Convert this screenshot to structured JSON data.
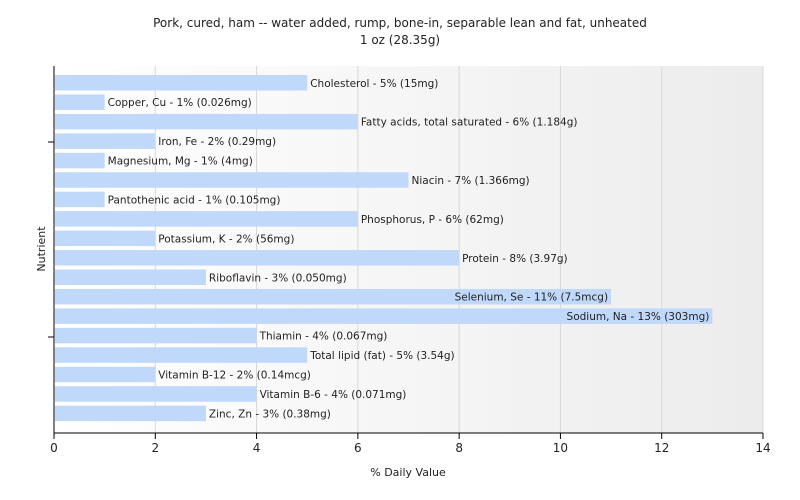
{
  "chart_data": {
    "type": "bar",
    "orientation": "horizontal",
    "title": "Pork, cured, ham -- water added, rump, bone-in, separable lean and fat, unheated",
    "subtitle": "1 oz (28.35g)",
    "xlabel": "% Daily Value",
    "ylabel": "Nutrient",
    "xlim": [
      0,
      14
    ],
    "xticks": [
      0,
      2,
      4,
      6,
      8,
      10,
      12,
      14
    ],
    "grid": true,
    "bar_color": "#c0d8fa",
    "categories": [
      "Cholesterol",
      "Copper, Cu",
      "Fatty acids, total saturated",
      "Iron, Fe",
      "Magnesium, Mg",
      "Niacin",
      "Pantothenic acid",
      "Phosphorus, P",
      "Potassium, K",
      "Protein",
      "Riboflavin",
      "Selenium, Se",
      "Sodium, Na",
      "Thiamin",
      "Total lipid (fat)",
      "Vitamin B-12",
      "Vitamin B-6",
      "Zinc, Zn"
    ],
    "values": [
      5,
      1,
      6,
      2,
      1,
      7,
      1,
      6,
      2,
      8,
      3,
      11,
      13,
      4,
      5,
      2,
      4,
      3
    ],
    "labels": [
      "Cholesterol - 5% (15mg)",
      "Copper, Cu - 1% (0.026mg)",
      "Fatty acids, total saturated - 6% (1.184g)",
      "Iron, Fe - 2% (0.29mg)",
      "Magnesium, Mg - 1% (4mg)",
      "Niacin - 7% (1.366mg)",
      "Pantothenic acid - 1% (0.105mg)",
      "Phosphorus, P - 6% (62mg)",
      "Potassium, K - 2% (56mg)",
      "Protein - 8% (3.97g)",
      "Riboflavin - 3% (0.050mg)",
      "Selenium, Se - 11% (7.5mcg)",
      "Sodium, Na - 13% (303mg)",
      "Thiamin - 4% (0.067mg)",
      "Total lipid (fat) - 5% (3.54g)",
      "Vitamin B-12 - 2% (0.14mcg)",
      "Vitamin B-6 - 4% (0.071mg)",
      "Zinc, Zn - 3% (0.38mg)"
    ]
  }
}
